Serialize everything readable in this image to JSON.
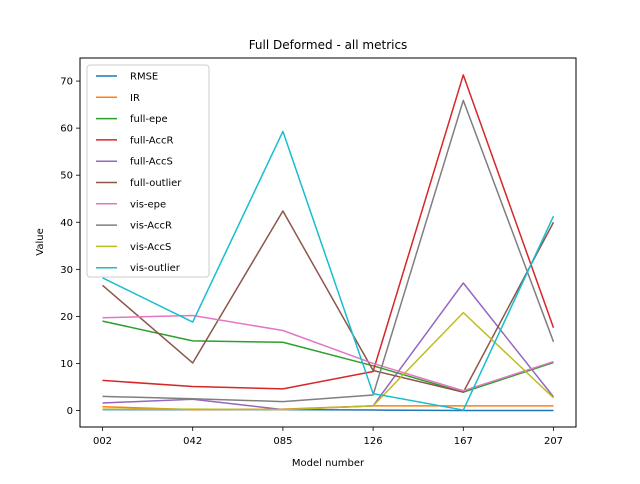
{
  "chart_data": {
    "type": "line",
    "title": "Full Deformed - all metrics",
    "xlabel": "Model number",
    "ylabel": "Value",
    "categories": [
      "002",
      "042",
      "085",
      "126",
      "167",
      "207"
    ],
    "ylim": [
      -3.5,
      74.9
    ],
    "yticks": [
      0,
      10,
      20,
      30,
      40,
      50,
      60,
      70
    ],
    "grid": false,
    "legend_position": "top-left",
    "series": [
      {
        "name": "RMSE",
        "color": "#1f77b4",
        "values": [
          0.2,
          0.2,
          0.2,
          0.1,
          0.0,
          0.0
        ]
      },
      {
        "name": "IR",
        "color": "#ff7f0e",
        "values": [
          0.8,
          0.2,
          0.3,
          1.0,
          1.0,
          1.0
        ]
      },
      {
        "name": "full-epe",
        "color": "#2ca02c",
        "values": [
          19.0,
          14.8,
          14.5,
          9.5,
          3.9,
          10.2
        ]
      },
      {
        "name": "full-AccR",
        "color": "#d62728",
        "values": [
          6.4,
          5.1,
          4.6,
          8.3,
          71.3,
          17.6
        ]
      },
      {
        "name": "full-AccS",
        "color": "#9467bd",
        "values": [
          1.6,
          2.4,
          0.2,
          1.0,
          27.1,
          2.9
        ]
      },
      {
        "name": "full-outlier",
        "color": "#8c564b",
        "values": [
          26.6,
          10.1,
          42.4,
          8.5,
          3.9,
          40.0
        ]
      },
      {
        "name": "vis-epe",
        "color": "#e377c2",
        "values": [
          19.7,
          20.2,
          17.0,
          10.0,
          4.2,
          10.4
        ]
      },
      {
        "name": "vis-AccR",
        "color": "#7f7f7f",
        "values": [
          3.0,
          2.5,
          1.9,
          3.3,
          65.9,
          14.6
        ]
      },
      {
        "name": "vis-AccS",
        "color": "#bcbd22",
        "values": [
          0.3,
          0.3,
          0.2,
          1.0,
          20.8,
          2.7
        ]
      },
      {
        "name": "vis-outlier",
        "color": "#17becf",
        "values": [
          28.2,
          18.8,
          59.3,
          3.6,
          0.1,
          41.3
        ]
      }
    ]
  }
}
